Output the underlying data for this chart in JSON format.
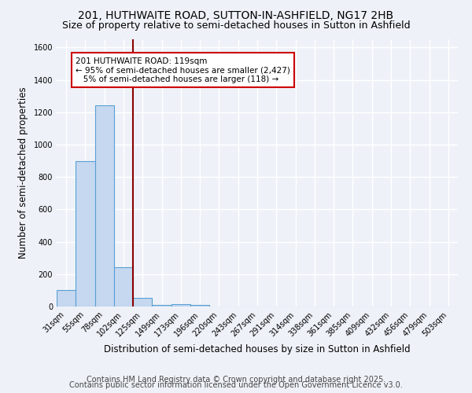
{
  "title1": "201, HUTHWAITE ROAD, SUTTON-IN-ASHFIELD, NG17 2HB",
  "title2": "Size of property relative to semi-detached houses in Sutton in Ashfield",
  "xlabel": "Distribution of semi-detached houses by size in Sutton in Ashfield",
  "ylabel": "Number of semi-detached properties",
  "categories": [
    "31sqm",
    "55sqm",
    "78sqm",
    "102sqm",
    "125sqm",
    "149sqm",
    "173sqm",
    "196sqm",
    "220sqm",
    "243sqm",
    "267sqm",
    "291sqm",
    "314sqm",
    "338sqm",
    "361sqm",
    "385sqm",
    "409sqm",
    "432sqm",
    "456sqm",
    "479sqm",
    "503sqm"
  ],
  "values": [
    100,
    900,
    1240,
    245,
    55,
    10,
    15,
    10,
    0,
    0,
    0,
    0,
    0,
    0,
    0,
    0,
    0,
    0,
    0,
    0,
    0
  ],
  "bar_color": "#c5d8f0",
  "bar_edge_color": "#5a9fd4",
  "vline_color": "#8b0000",
  "annotation_line1": "201 HUTHWAITE ROAD: 119sqm",
  "annotation_line2": "← 95% of semi-detached houses are smaller (2,427)",
  "annotation_line3": "   5% of semi-detached houses are larger (118) →",
  "annotation_box_color": "white",
  "annotation_box_edge_color": "#cc0000",
  "ylim": [
    0,
    1650
  ],
  "yticks": [
    0,
    200,
    400,
    600,
    800,
    1000,
    1200,
    1400,
    1600
  ],
  "background_color": "#eef2f8",
  "grid_color": "white",
  "footer1": "Contains HM Land Registry data © Crown copyright and database right 2025.",
  "footer2": "Contains public sector information licensed under the Open Government Licence v3.0.",
  "title_fontsize": 10,
  "subtitle_fontsize": 9,
  "tick_fontsize": 7,
  "label_fontsize": 8.5,
  "footer_fontsize": 7
}
